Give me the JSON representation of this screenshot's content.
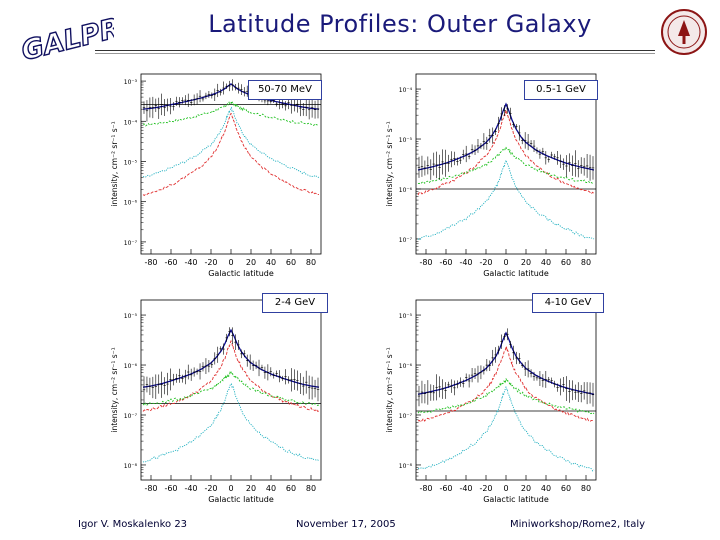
{
  "header": {
    "title": "Latitude Profiles: Outer Galaxy",
    "logo_text": "GALPROP"
  },
  "footer": {
    "author": "Igor V. Moskalenko 23",
    "date": "November 17, 2005",
    "venue": "Miniworkshop/Rome2, Italy"
  },
  "axis_labels": {
    "xlabel": "Galactic latitude",
    "ylabel": "intensity, cm⁻² sr⁻¹ s⁻¹"
  },
  "colors": {
    "title": "#1a1a7a",
    "model_total": "#0a0a90",
    "data": "#000000",
    "pi0": "#e03030",
    "ic": "#20c020",
    "brems": "#20b0c0",
    "panel_label_border": "#3040a0"
  },
  "chart_data": [
    {
      "type": "line",
      "label": "50-70 MeV",
      "xlabel": "Galactic latitude",
      "ylabel": "intensity, cm⁻² sr⁻¹ s⁻¹",
      "xlim": [
        -90,
        90
      ],
      "xticks": [
        -80,
        -60,
        -40,
        -20,
        0,
        20,
        40,
        60,
        80
      ],
      "yscale": "log",
      "ylim": [
        5e-08,
        0.0015
      ],
      "yticks": [
        "10⁻³",
        "10⁻⁴",
        "10⁻⁵",
        "10⁻⁶",
        "10⁻⁷"
      ],
      "x": [
        -88,
        -80,
        -70,
        -60,
        -50,
        -40,
        -30,
        -20,
        -15,
        -10,
        -6,
        -3,
        0,
        3,
        6,
        10,
        15,
        20,
        30,
        40,
        50,
        60,
        70,
        80,
        88
      ],
      "series": [
        {
          "name": "",
          "color": "#0a0a90",
          "values": [
            0.0002,
            0.00021,
            0.00023,
            0.00026,
            0.00029,
            0.00033,
            0.00038,
            0.00045,
            0.0005,
            0.00057,
            0.00065,
            0.00075,
            0.00085,
            0.00075,
            0.00065,
            0.00057,
            0.0005,
            0.00045,
            0.00038,
            0.00033,
            0.00029,
            0.00026,
            0.00023,
            0.00021,
            0.0002
          ]
        },
        {
          "name": "",
          "color": "#20c020",
          "values": [
            8e-05,
            8.5e-05,
            9.2e-05,
            0.0001,
            0.00011,
            0.000125,
            0.000145,
            0.00017,
            0.00019,
            0.00021,
            0.00024,
            0.00027,
            0.0003,
            0.00027,
            0.00024,
            0.00021,
            0.00019,
            0.00017,
            0.000145,
            0.000125,
            0.00011,
            0.0001,
            9.2e-05,
            8.5e-05,
            8e-05
          ]
        },
        {
          "name": "",
          "color": "#20b0c0",
          "values": [
            4e-06,
            4.5e-06,
            5.5e-06,
            7e-06,
            9e-06,
            1.2e-05,
            1.7e-05,
            2.6e-05,
            3.8e-05,
            6e-05,
            9.5e-05,
            0.00015,
            0.00022,
            0.00015,
            9.5e-05,
            6e-05,
            3.8e-05,
            2.6e-05,
            1.7e-05,
            1.2e-05,
            9e-06,
            7e-06,
            5.5e-06,
            4.5e-06,
            4e-06
          ]
        },
        {
          "name": "",
          "color": "#e03030",
          "values": [
            1.5e-06,
            1.7e-06,
            2e-06,
            2.6e-06,
            3.5e-06,
            5e-06,
            7.5e-06,
            1.3e-05,
            2e-05,
            3.5e-05,
            6e-05,
            0.0001,
            0.00016,
            0.0001,
            6e-05,
            3.5e-05,
            2e-05,
            1.3e-05,
            7.5e-06,
            5e-06,
            3.5e-06,
            2.6e-06,
            2e-06,
            1.7e-06,
            1.5e-06
          ]
        }
      ],
      "background_level": 0.00026
    },
    {
      "type": "line",
      "label": "0.5-1 GeV",
      "xlabel": "Galactic latitude",
      "ylabel": "intensity, cm⁻² sr⁻¹ s⁻¹",
      "xlim": [
        -90,
        90
      ],
      "xticks": [
        -80,
        -60,
        -40,
        -20,
        0,
        20,
        40,
        60,
        80
      ],
      "yscale": "log",
      "ylim": [
        5e-08,
        0.0002
      ],
      "yticks": [
        "10⁻⁴",
        "10⁻⁵",
        "10⁻⁶",
        "10⁻⁷"
      ],
      "x": [
        -88,
        -80,
        -70,
        -60,
        -50,
        -40,
        -30,
        -20,
        -15,
        -10,
        -6,
        -3,
        0,
        3,
        6,
        10,
        15,
        20,
        30,
        40,
        50,
        60,
        70,
        80,
        88
      ],
      "series": [
        {
          "name": "",
          "color": "#0a0a90",
          "values": [
            2.4e-06,
            2.6e-06,
            2.9e-06,
            3.3e-06,
            3.9e-06,
            4.7e-06,
            6e-06,
            8.5e-06,
            1.1e-05,
            1.6e-05,
            2.4e-05,
            3.6e-05,
            5e-05,
            3.6e-05,
            2.4e-05,
            1.6e-05,
            1.1e-05,
            8.5e-06,
            6e-06,
            4.7e-06,
            3.9e-06,
            3.3e-06,
            2.9e-06,
            2.6e-06,
            2.4e-06
          ]
        },
        {
          "name": "",
          "color": "#e03030",
          "values": [
            8e-07,
            9e-07,
            1.05e-06,
            1.3e-06,
            1.6e-06,
            2.1e-06,
            3e-06,
            4.6e-06,
            6.5e-06,
            1e-05,
            1.6e-05,
            2.5e-05,
            3.6e-05,
            2.5e-05,
            1.6e-05,
            1e-05,
            6.5e-06,
            4.6e-06,
            3e-06,
            2.1e-06,
            1.6e-06,
            1.3e-06,
            1.05e-06,
            9e-07,
            8e-07
          ]
        },
        {
          "name": "",
          "color": "#20c020",
          "values": [
            1.3e-06,
            1.4e-06,
            1.5e-06,
            1.65e-06,
            1.85e-06,
            2.1e-06,
            2.5e-06,
            3.1e-06,
            3.6e-06,
            4.3e-06,
            5.1e-06,
            5.9e-06,
            6.8e-06,
            5.9e-06,
            5.1e-06,
            4.3e-06,
            3.6e-06,
            3.1e-06,
            2.5e-06,
            2.1e-06,
            1.85e-06,
            1.65e-06,
            1.5e-06,
            1.4e-06,
            1.3e-06
          ]
        },
        {
          "name": "",
          "color": "#20b0c0",
          "values": [
            1e-07,
            1.1e-07,
            1.3e-07,
            1.6e-07,
            2e-07,
            2.6e-07,
            3.6e-07,
            5.5e-07,
            7.5e-07,
            1.1e-06,
            1.7e-06,
            2.6e-06,
            3.6e-06,
            2.6e-06,
            1.7e-06,
            1.1e-06,
            7.5e-07,
            5.5e-07,
            3.6e-07,
            2.6e-07,
            2e-07,
            1.6e-07,
            1.3e-07,
            1.1e-07,
            1e-07
          ]
        }
      ],
      "background_level": 1e-06
    },
    {
      "type": "line",
      "label": "2-4 GeV",
      "xlabel": "Galactic latitude",
      "ylabel": "intensity, cm⁻² sr⁻¹ s⁻¹",
      "xlim": [
        -90,
        90
      ],
      "xticks": [
        -80,
        -60,
        -40,
        -20,
        0,
        20,
        40,
        60,
        80
      ],
      "yscale": "log",
      "ylim": [
        5e-09,
        2e-05
      ],
      "yticks": [
        "10⁻⁵",
        "10⁻⁶",
        "10⁻⁷",
        "10⁻⁸"
      ],
      "x": [
        -88,
        -80,
        -70,
        -60,
        -50,
        -40,
        -30,
        -20,
        -15,
        -10,
        -6,
        -3,
        0,
        3,
        6,
        10,
        15,
        20,
        30,
        40,
        50,
        60,
        70,
        80,
        88
      ],
      "series": [
        {
          "name": "",
          "color": "#0a0a90",
          "values": [
            3.6e-07,
            3.8e-07,
            4.2e-07,
            4.8e-07,
            5.6e-07,
            6.6e-07,
            8.2e-07,
            1.1e-06,
            1.4e-06,
            1.9e-06,
            2.7e-06,
            3.8e-06,
            5e-06,
            3.8e-06,
            2.7e-06,
            1.9e-06,
            1.4e-06,
            1.1e-06,
            8.2e-07,
            6.6e-07,
            5.6e-07,
            4.8e-07,
            4.2e-07,
            3.8e-07,
            3.6e-07
          ]
        },
        {
          "name": "",
          "color": "#e03030",
          "values": [
            1.2e-07,
            1.3e-07,
            1.45e-07,
            1.7e-07,
            2e-07,
            2.5e-07,
            3.3e-07,
            4.8e-07,
            6.5e-07,
            9.5e-07,
            1.4e-06,
            2.1e-06,
            2.9e-06,
            2.1e-06,
            1.4e-06,
            9.5e-07,
            6.5e-07,
            4.8e-07,
            3.3e-07,
            2.5e-07,
            2e-07,
            1.7e-07,
            1.45e-07,
            1.3e-07,
            1.2e-07
          ]
        },
        {
          "name": "",
          "color": "#20c020",
          "values": [
            1.6e-07,
            1.7e-07,
            1.8e-07,
            1.95e-07,
            2.15e-07,
            2.4e-07,
            2.8e-07,
            3.4e-07,
            3.9e-07,
            4.6e-07,
            5.4e-07,
            6.2e-07,
            7e-07,
            6.2e-07,
            5.4e-07,
            4.6e-07,
            3.9e-07,
            3.4e-07,
            2.8e-07,
            2.4e-07,
            2.15e-07,
            1.95e-07,
            1.8e-07,
            1.7e-07,
            1.6e-07
          ]
        },
        {
          "name": "",
          "color": "#20b0c0",
          "values": [
            1.2e-08,
            1.3e-08,
            1.5e-08,
            1.8e-08,
            2.2e-08,
            2.9e-08,
            4e-08,
            6.2e-08,
            8.5e-08,
            1.3e-07,
            2e-07,
            3.1e-07,
            4.2e-07,
            3.1e-07,
            2e-07,
            1.3e-07,
            8.5e-08,
            6.2e-08,
            4e-08,
            2.9e-08,
            2.2e-08,
            1.8e-08,
            1.5e-08,
            1.3e-08,
            1.2e-08
          ]
        }
      ],
      "background_level": 1.7e-07
    },
    {
      "type": "line",
      "label": "4-10 GeV",
      "xlabel": "Galactic latitude",
      "ylabel": "intensity, cm⁻² sr⁻¹ s⁻¹",
      "xlim": [
        -90,
        90
      ],
      "xticks": [
        -80,
        -60,
        -40,
        -20,
        0,
        20,
        40,
        60,
        80
      ],
      "yscale": "log",
      "ylim": [
        5e-09,
        2e-05
      ],
      "yticks": [
        "10⁻⁵",
        "10⁻⁶",
        "10⁻⁷",
        "10⁻⁸"
      ],
      "x": [
        -88,
        -80,
        -70,
        -60,
        -50,
        -40,
        -30,
        -20,
        -15,
        -10,
        -6,
        -3,
        0,
        3,
        6,
        10,
        15,
        20,
        30,
        40,
        50,
        60,
        70,
        80,
        88
      ],
      "series": [
        {
          "name": "",
          "color": "#0a0a90",
          "values": [
            2.6e-07,
            2.8e-07,
            3.1e-07,
            3.5e-07,
            4.1e-07,
            4.9e-07,
            6.2e-07,
            8.5e-07,
            1.1e-06,
            1.5e-06,
            2.2e-06,
            3.2e-06,
            4.4e-06,
            3.2e-06,
            2.2e-06,
            1.5e-06,
            1.1e-06,
            8.5e-07,
            6.2e-07,
            4.9e-07,
            4.1e-07,
            3.5e-07,
            3.1e-07,
            2.8e-07,
            2.6e-07
          ]
        },
        {
          "name": "",
          "color": "#e03030",
          "values": [
            7.5e-08,
            8.2e-08,
            9.2e-08,
            1.1e-07,
            1.3e-07,
            1.65e-07,
            2.2e-07,
            3.3e-07,
            4.6e-07,
            7e-07,
            1.05e-06,
            1.6e-06,
            2.3e-06,
            1.6e-06,
            1.05e-06,
            7e-07,
            4.6e-07,
            3.3e-07,
            2.2e-07,
            1.65e-07,
            1.3e-07,
            1.1e-07,
            9.2e-08,
            8.2e-08,
            7.5e-08
          ]
        },
        {
          "name": "",
          "color": "#20c020",
          "values": [
            1.1e-07,
            1.15e-07,
            1.25e-07,
            1.35e-07,
            1.5e-07,
            1.7e-07,
            2e-07,
            2.45e-07,
            2.8e-07,
            3.3e-07,
            3.9e-07,
            4.5e-07,
            5.1e-07,
            4.5e-07,
            3.9e-07,
            3.3e-07,
            2.8e-07,
            2.45e-07,
            2e-07,
            1.7e-07,
            1.5e-07,
            1.35e-07,
            1.25e-07,
            1.15e-07,
            1.1e-07
          ]
        },
        {
          "name": "",
          "color": "#20b0c0",
          "values": [
            8e-09,
            8.8e-09,
            1e-08,
            1.25e-08,
            1.55e-08,
            2.05e-08,
            2.9e-08,
            4.6e-08,
            6.5e-08,
            1e-07,
            1.6e-07,
            2.5e-07,
            3.5e-07,
            2.5e-07,
            1.6e-07,
            1e-07,
            6.5e-08,
            4.6e-08,
            2.9e-08,
            2.05e-08,
            1.55e-08,
            1.25e-08,
            1e-08,
            8.8e-09,
            8e-09
          ]
        }
      ],
      "background_level": 1.2e-07
    }
  ]
}
